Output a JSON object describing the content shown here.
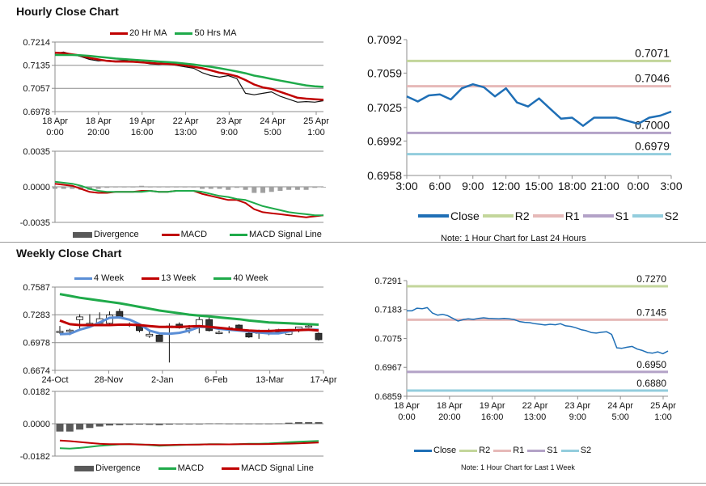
{
  "hourly_title": "Hourly Close Chart",
  "weekly_title": "Weekly Close Chart",
  "colors": {
    "red": "#c00000",
    "green": "#1faa4a",
    "blue": "#5b8ed6",
    "close": "#1f6fb6",
    "R2": "#c3d69b",
    "R1": "#e6b9b8",
    "S1": "#b3a2c7",
    "S2": "#93cddd",
    "div": "#595959"
  },
  "chart_data": [
    {
      "id": "hourly_price",
      "type": "line",
      "legend": [
        "20 Hr MA",
        "50 Hrs MA"
      ],
      "ylim": [
        0.6978,
        0.7214
      ],
      "yticks": [
        "0.7214",
        "0.7135",
        "0.7057",
        "0.6978"
      ],
      "xticks": [
        "18 Apr\n0:00",
        "18 Apr\n20:00",
        "19 Apr\n16:00",
        "22 Apr\n13:00",
        "23 Apr\n9:00",
        "24 Apr\n5:00",
        "25 Apr\n1:00"
      ],
      "series": [
        {
          "name": "Close",
          "values": [
            0.7175,
            0.718,
            0.7172,
            0.7165,
            0.7155,
            0.715,
            0.7152,
            0.715,
            0.7152,
            0.7148,
            0.7145,
            0.714,
            0.7138,
            0.714,
            0.7135,
            0.713,
            0.7125,
            0.711,
            0.71,
            0.7095,
            0.71,
            0.709,
            0.704,
            0.7035,
            0.704,
            0.7045,
            0.703,
            0.702,
            0.701,
            0.7012,
            0.701,
            0.7015
          ]
        },
        {
          "name": "20 Hr MA",
          "values": [
            0.7178,
            0.7176,
            0.7172,
            0.7168,
            0.716,
            0.7155,
            0.715,
            0.7148,
            0.7148,
            0.7147,
            0.7145,
            0.7143,
            0.7141,
            0.714,
            0.7138,
            0.7135,
            0.713,
            0.7125,
            0.7118,
            0.711,
            0.7105,
            0.7098,
            0.7085,
            0.707,
            0.706,
            0.7055,
            0.7045,
            0.7035,
            0.7025,
            0.7022,
            0.702,
            0.7018
          ]
        },
        {
          "name": "50 Hrs MA",
          "values": [
            0.717,
            0.717,
            0.717,
            0.7169,
            0.7167,
            0.7164,
            0.7161,
            0.7158,
            0.7156,
            0.7154,
            0.7152,
            0.715,
            0.7148,
            0.7146,
            0.7144,
            0.7141,
            0.7138,
            0.7134,
            0.713,
            0.7125,
            0.712,
            0.7114,
            0.7108,
            0.71,
            0.7095,
            0.7089,
            0.7083,
            0.7078,
            0.7072,
            0.7067,
            0.7064,
            0.7062
          ]
        }
      ]
    },
    {
      "id": "hourly_macd",
      "type": "bar+line",
      "legend": [
        "Divergence",
        "MACD",
        "MACD Signal Line"
      ],
      "ylim": [
        -0.0035,
        0.0035
      ],
      "yticks": [
        "0.0035",
        "0.0000",
        "-0.0035"
      ],
      "series": [
        {
          "name": "MACD",
          "values": [
            0.0003,
            0.0002,
            0.0001,
            -0.0002,
            -0.0005,
            -0.0006,
            -0.0006,
            -0.0005,
            -0.0005,
            -0.0005,
            -0.0004,
            -0.0004,
            -0.0005,
            -0.0005,
            -0.0004,
            -0.0004,
            -0.0004,
            -0.0007,
            -0.0009,
            -0.0011,
            -0.0013,
            -0.0013,
            -0.0016,
            -0.0022,
            -0.0025,
            -0.0026,
            -0.0027,
            -0.0028,
            -0.0029,
            -0.003,
            -0.0029,
            -0.0028
          ]
        },
        {
          "name": "MACD Signal Line",
          "values": [
            0.0005,
            0.0004,
            0.0003,
            0.0001,
            -0.0002,
            -0.0004,
            -0.0005,
            -0.0005,
            -0.0005,
            -0.0005,
            -0.0005,
            -0.0004,
            -0.0005,
            -0.0005,
            -0.0004,
            -0.0004,
            -0.0004,
            -0.0005,
            -0.0007,
            -0.0009,
            -0.001,
            -0.0012,
            -0.0013,
            -0.0016,
            -0.0019,
            -0.0021,
            -0.0023,
            -0.0025,
            -0.0026,
            -0.0027,
            -0.0028,
            -0.0028
          ]
        }
      ]
    },
    {
      "id": "hourly_24h",
      "type": "line",
      "legend": [
        "Close",
        "R2",
        "R1",
        "S1",
        "S2"
      ],
      "note": "Note: 1 Hour Chart for Last 24 Hours",
      "ylim": [
        0.6958,
        0.7092
      ],
      "yticks": [
        "0.7092",
        "0.7059",
        "0.7025",
        "0.6992",
        "0.6958"
      ],
      "xticks": [
        "3:00",
        "6:00",
        "9:00",
        "12:00",
        "15:00",
        "18:00",
        "21:00",
        "0:00",
        "3:00"
      ],
      "levels": [
        {
          "name": "R2",
          "value": 0.7071,
          "label": "0.7071"
        },
        {
          "name": "R1",
          "value": 0.7046,
          "label": "0.7046"
        },
        {
          "name": "S1",
          "value": 0.7,
          "label": "0.7000"
        },
        {
          "name": "S2",
          "value": 0.6979,
          "label": "0.6979"
        }
      ],
      "series": [
        {
          "name": "Close",
          "values": [
            0.7036,
            0.7031,
            0.7037,
            0.7038,
            0.7033,
            0.7044,
            0.7048,
            0.7045,
            0.7036,
            0.7044,
            0.703,
            0.7026,
            0.7034,
            0.7024,
            0.7014,
            0.7015,
            0.7007,
            0.7015,
            0.7015,
            0.7015,
            0.7012,
            0.7009,
            0.7015,
            0.7017,
            0.7021
          ]
        }
      ]
    },
    {
      "id": "weekly_price",
      "type": "candlestick",
      "legend": [
        "4 Week",
        "13 Week",
        "40 Week"
      ],
      "ylim": [
        0.6674,
        0.7587
      ],
      "yticks": [
        "0.7587",
        "0.7283",
        "0.6978",
        "0.6674"
      ],
      "xticks": [
        "24-Oct",
        "28-Nov",
        "2-Jan",
        "6-Feb",
        "13-Mar",
        "17-Apr"
      ],
      "candles_ochl": [
        [
          0.7095,
          0.7102,
          0.716,
          0.7075
        ],
        [
          0.71,
          0.7115,
          0.713,
          0.706
        ],
        [
          0.723,
          0.726,
          0.729,
          0.711
        ],
        [
          0.718,
          0.719,
          0.729,
          0.715
        ],
        [
          0.719,
          0.724,
          0.731,
          0.716
        ],
        [
          0.719,
          0.728,
          0.732,
          0.717
        ],
        [
          0.732,
          0.726,
          0.735,
          0.724
        ],
        [
          0.718,
          0.717,
          0.72,
          0.715
        ],
        [
          0.717,
          0.711,
          0.718,
          0.709
        ],
        [
          0.705,
          0.707,
          0.711,
          0.703
        ],
        [
          0.706,
          0.699,
          0.707,
          0.699
        ],
        [
          0.715,
          0.716,
          0.719,
          0.676
        ],
        [
          0.718,
          0.714,
          0.72,
          0.713
        ],
        [
          0.7125,
          0.713,
          0.717,
          0.708
        ],
        [
          0.715,
          0.723,
          0.726,
          0.708
        ],
        [
          0.723,
          0.711,
          0.726,
          0.71
        ],
        [
          0.709,
          0.709,
          0.711,
          0.707
        ],
        [
          0.713,
          0.714,
          0.716,
          0.708
        ],
        [
          0.717,
          0.713,
          0.718,
          0.71
        ],
        [
          0.708,
          0.704,
          0.71,
          0.703
        ],
        [
          0.708,
          0.71,
          0.712,
          0.702
        ],
        [
          0.71,
          0.711,
          0.713,
          0.706
        ],
        [
          0.712,
          0.709,
          0.713,
          0.708
        ],
        [
          0.707,
          0.71,
          0.712,
          0.706
        ],
        [
          0.711,
          0.715,
          0.715,
          0.709
        ],
        [
          0.716,
          0.716,
          0.718,
          0.714
        ],
        [
          0.708,
          0.701,
          0.709,
          0.7
        ]
      ],
      "series": [
        {
          "name": "4 Week",
          "values": [
            0.707,
            0.7075,
            0.712,
            0.715,
            0.72,
            0.725,
            0.7255,
            0.723,
            0.718,
            0.711,
            0.708,
            0.7075,
            0.7085,
            0.711,
            0.715,
            0.715,
            0.713,
            0.712,
            0.711,
            0.71,
            0.709,
            0.708,
            0.708,
            0.71,
            0.712,
            0.712,
            0.712
          ]
        },
        {
          "name": "13 Week",
          "values": [
            0.722,
            0.718,
            0.717,
            0.717,
            0.717,
            0.717,
            0.7175,
            0.7175,
            0.717,
            0.716,
            0.715,
            0.715,
            0.715,
            0.7155,
            0.716,
            0.715,
            0.714,
            0.713,
            0.712,
            0.711,
            0.7105,
            0.7105,
            0.711,
            0.7115,
            0.7115,
            0.712,
            0.711
          ]
        },
        {
          "name": "40 Week",
          "values": [
            0.751,
            0.749,
            0.747,
            0.7455,
            0.744,
            0.7425,
            0.741,
            0.739,
            0.737,
            0.735,
            0.733,
            0.7315,
            0.73,
            0.7285,
            0.7275,
            0.7265,
            0.7255,
            0.7245,
            0.7235,
            0.722,
            0.721,
            0.72,
            0.7195,
            0.719,
            0.7185,
            0.718,
            0.7175
          ]
        }
      ]
    },
    {
      "id": "weekly_macd",
      "type": "bar+line",
      "legend": [
        "Divergence",
        "MACD",
        "MACD Signal Line"
      ],
      "ylim": [
        -0.0182,
        0.0182
      ],
      "yticks": [
        "0.0182",
        "0.0000",
        "-0.0182"
      ],
      "divergence": [
        -0.0044,
        -0.0044,
        -0.0033,
        -0.0024,
        -0.0016,
        -0.001,
        -0.0008,
        -0.0006,
        -0.0005,
        -0.0006,
        -0.0008,
        -0.0005,
        -0.0003,
        -0.0002,
        -0.0001,
        0.0002,
        0.0002,
        0.0001,
        0.0001,
        0.0001,
        0.0001,
        0.0001,
        0.0002,
        0.0006,
        0.0009,
        0.0009,
        0.0009
      ],
      "series": [
        {
          "name": "MACD",
          "values": [
            -0.0138,
            -0.014,
            -0.0136,
            -0.013,
            -0.0124,
            -0.012,
            -0.0116,
            -0.0115,
            -0.0116,
            -0.012,
            -0.0124,
            -0.0122,
            -0.012,
            -0.0118,
            -0.0117,
            -0.0115,
            -0.0115,
            -0.0116,
            -0.0115,
            -0.0113,
            -0.0113,
            -0.0111,
            -0.0108,
            -0.0104,
            -0.0101,
            -0.0099,
            -0.0097
          ]
        },
        {
          "name": "MACD Signal Line",
          "values": [
            -0.0094,
            -0.0098,
            -0.0103,
            -0.0108,
            -0.0113,
            -0.0115,
            -0.0115,
            -0.0115,
            -0.0117,
            -0.0118,
            -0.012,
            -0.0119,
            -0.0118,
            -0.0118,
            -0.0117,
            -0.0116,
            -0.0116,
            -0.0116,
            -0.0115,
            -0.0115,
            -0.0115,
            -0.0114,
            -0.0113,
            -0.0112,
            -0.011,
            -0.0108,
            -0.0106
          ]
        }
      ]
    },
    {
      "id": "weekly_close",
      "type": "line",
      "legend": [
        "Close",
        "R2",
        "R1",
        "S1",
        "S2"
      ],
      "note": "Note: 1 Hour Chart for Last 1 Week",
      "ylim": [
        0.6859,
        0.7291
      ],
      "yticks": [
        "0.7291",
        "0.7183",
        "0.7075",
        "0.6967",
        "0.6859"
      ],
      "xticks": [
        "18 Apr\n0:00",
        "18 Apr\n20:00",
        "19 Apr\n16:00",
        "22 Apr\n13:00",
        "23 Apr\n9:00",
        "24 Apr\n5:00",
        "25 Apr\n1:00"
      ],
      "levels": [
        {
          "name": "R2",
          "value": 0.727,
          "label": "0.7270"
        },
        {
          "name": "R1",
          "value": 0.7145,
          "label": "0.7145"
        },
        {
          "name": "S1",
          "value": 0.695,
          "label": "0.6950"
        },
        {
          "name": "S2",
          "value": 0.688,
          "label": "0.6880"
        }
      ],
      "series": [
        {
          "name": "Close",
          "values": [
            0.7178,
            0.7178,
            0.7188,
            0.7186,
            0.719,
            0.717,
            0.7162,
            0.7165,
            0.716,
            0.715,
            0.714,
            0.7145,
            0.7148,
            0.7146,
            0.715,
            0.7152,
            0.715,
            0.7149,
            0.7148,
            0.715,
            0.7148,
            0.7145,
            0.7138,
            0.7135,
            0.7134,
            0.713,
            0.7128,
            0.7125,
            0.7128,
            0.7126,
            0.713,
            0.7122,
            0.712,
            0.7115,
            0.7108,
            0.7104,
            0.7097,
            0.7095,
            0.7098,
            0.71,
            0.709,
            0.704,
            0.7038,
            0.7042,
            0.7045,
            0.7035,
            0.703,
            0.7022,
            0.702,
            0.7025,
            0.7018,
            0.7028
          ]
        }
      ]
    }
  ]
}
